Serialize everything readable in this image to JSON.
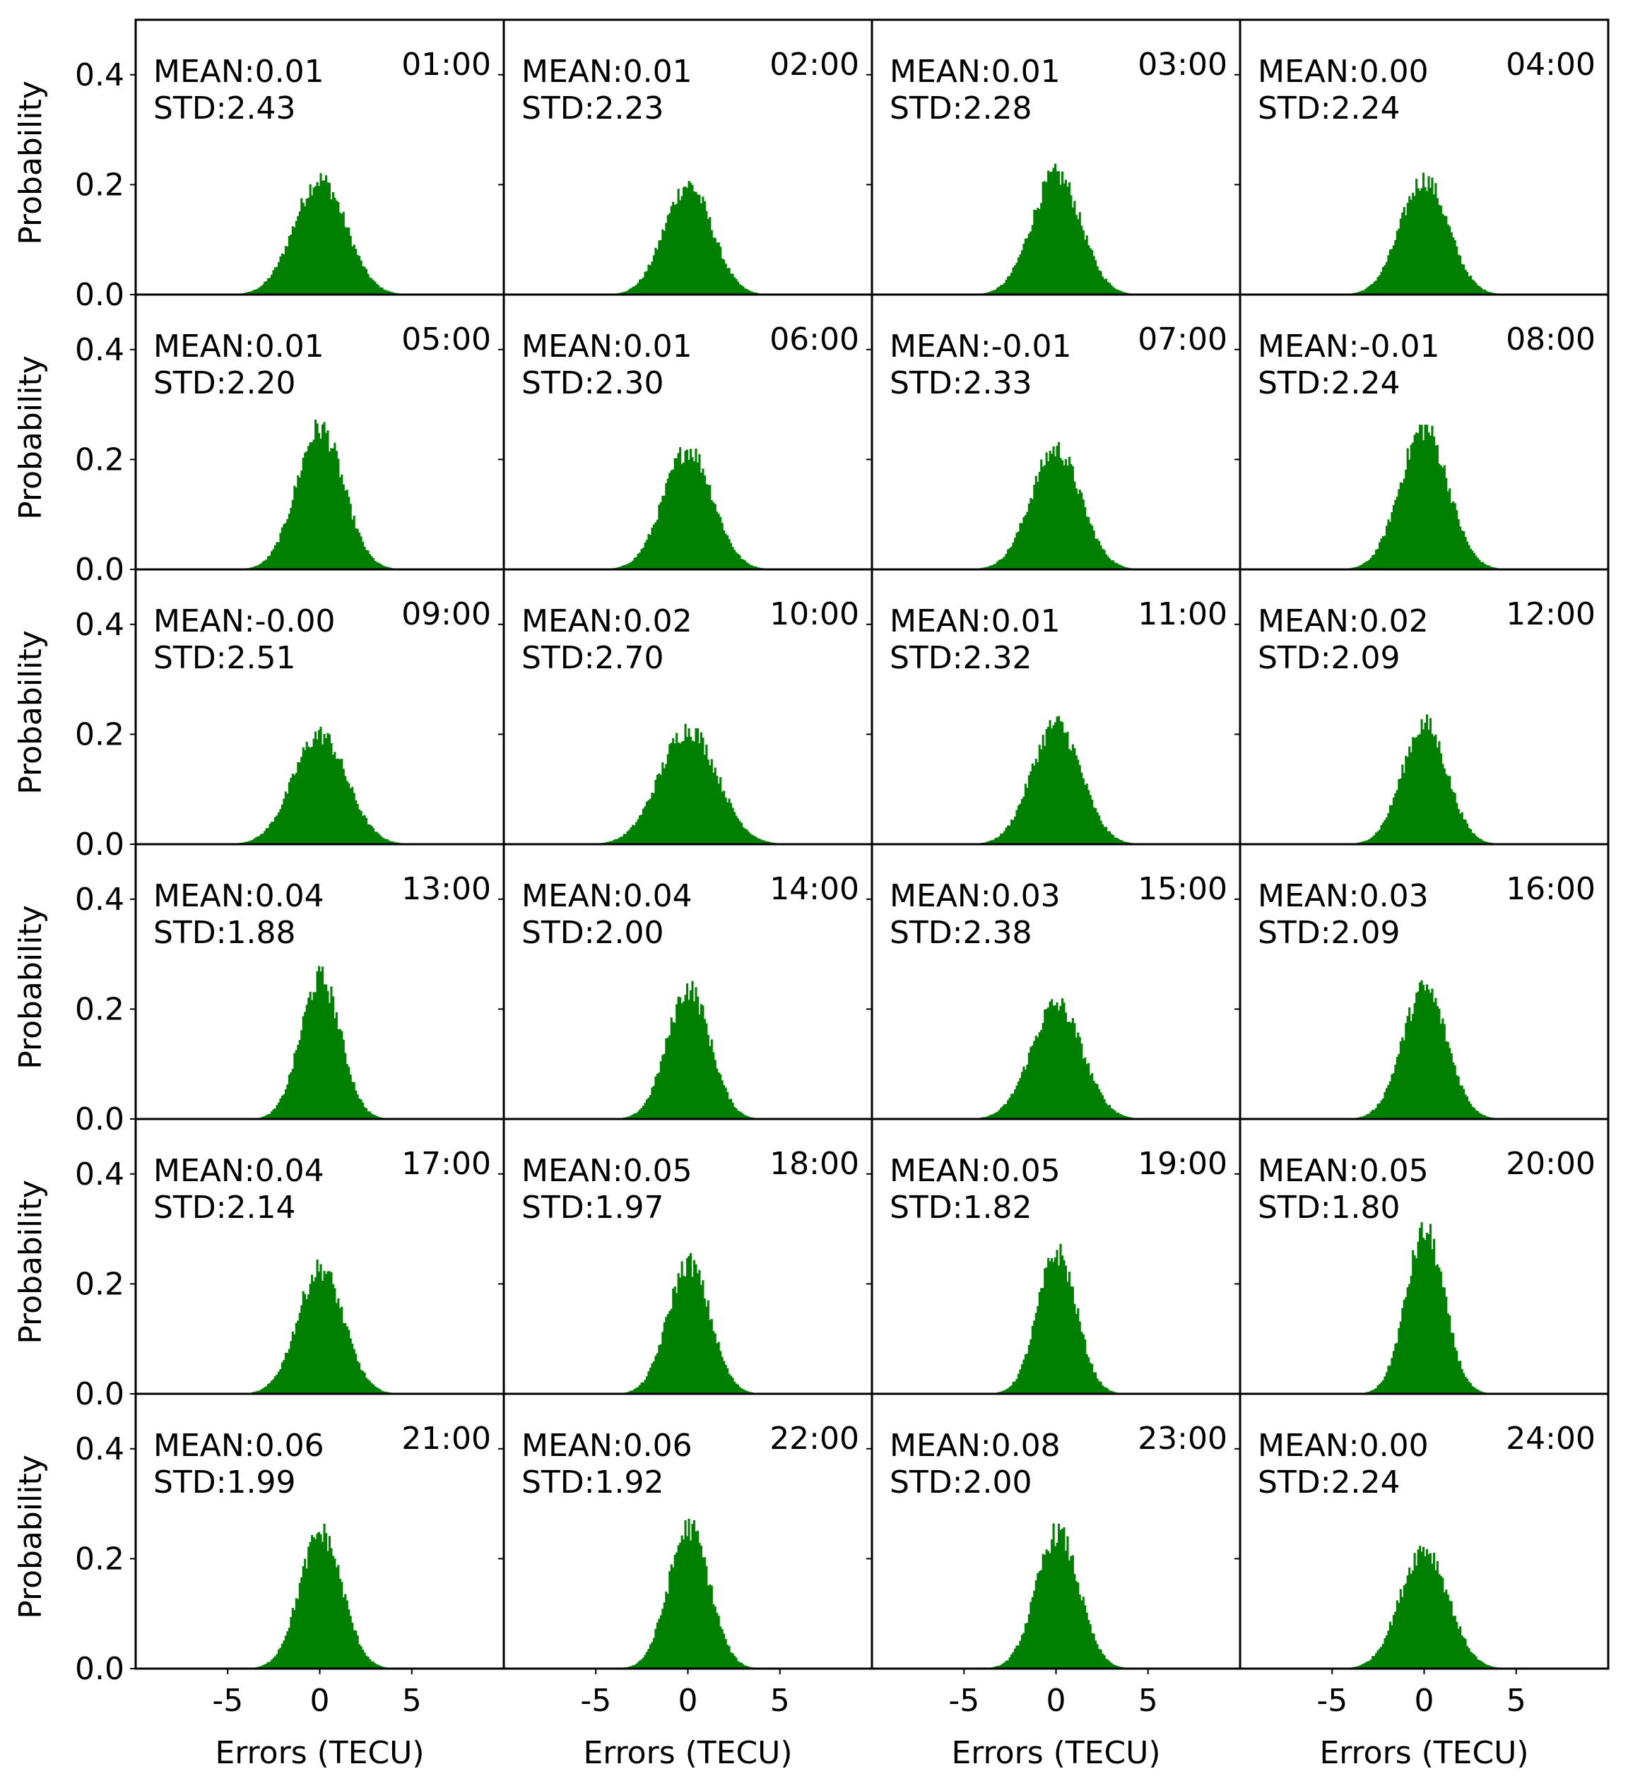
{
  "figure": {
    "ylabel": "Probability",
    "xlabel": "Errors (TECU)",
    "x_ticks": [
      "-5",
      "0",
      "5"
    ],
    "y_ticks": [
      "0.0",
      "0.2",
      "0.4"
    ],
    "bar_color": "#008000"
  },
  "chart_data": [
    {
      "type": "bar",
      "hour": "01:00",
      "mean": "MEAN:0.01",
      "std": "STD:2.43",
      "mean_value": 0.01,
      "std_value": 2.43,
      "peak": 0.22,
      "xlim": [
        -10,
        10
      ],
      "ylim": [
        0,
        0.5
      ]
    },
    {
      "type": "bar",
      "hour": "02:00",
      "mean": "MEAN:0.01",
      "std": "STD:2.23",
      "mean_value": 0.01,
      "std_value": 2.23,
      "peak": 0.21,
      "xlim": [
        -10,
        10
      ],
      "ylim": [
        0,
        0.5
      ]
    },
    {
      "type": "bar",
      "hour": "03:00",
      "mean": "MEAN:0.01",
      "std": "STD:2.28",
      "mean_value": 0.01,
      "std_value": 2.28,
      "peak": 0.23,
      "xlim": [
        -10,
        10
      ],
      "ylim": [
        0,
        0.5
      ]
    },
    {
      "type": "bar",
      "hour": "04:00",
      "mean": "MEAN:0.00",
      "std": "STD:2.24",
      "mean_value": 0.0,
      "std_value": 2.24,
      "peak": 0.22,
      "xlim": [
        -10,
        10
      ],
      "ylim": [
        0,
        0.5
      ]
    },
    {
      "type": "bar",
      "hour": "05:00",
      "mean": "MEAN:0.01",
      "std": "STD:2.20",
      "mean_value": 0.01,
      "std_value": 2.2,
      "peak": 0.27,
      "xlim": [
        -10,
        10
      ],
      "ylim": [
        0,
        0.5
      ]
    },
    {
      "type": "bar",
      "hour": "06:00",
      "mean": "MEAN:0.01",
      "std": "STD:2.30",
      "mean_value": 0.01,
      "std_value": 2.3,
      "peak": 0.23,
      "xlim": [
        -10,
        10
      ],
      "ylim": [
        0,
        0.5
      ]
    },
    {
      "type": "bar",
      "hour": "07:00",
      "mean": "MEAN:-0.01",
      "std": "STD:2.33",
      "mean_value": -0.01,
      "std_value": 2.33,
      "peak": 0.23,
      "xlim": [
        -10,
        10
      ],
      "ylim": [
        0,
        0.5
      ]
    },
    {
      "type": "bar",
      "hour": "08:00",
      "mean": "MEAN:-0.01",
      "std": "STD:2.24",
      "mean_value": -0.01,
      "std_value": 2.24,
      "peak": 0.27,
      "xlim": [
        -10,
        10
      ],
      "ylim": [
        0,
        0.5
      ]
    },
    {
      "type": "bar",
      "hour": "09:00",
      "mean": "MEAN:-0.00",
      "std": "STD:2.51",
      "mean_value": 0.0,
      "std_value": 2.51,
      "peak": 0.21,
      "xlim": [
        -10,
        10
      ],
      "ylim": [
        0,
        0.5
      ]
    },
    {
      "type": "bar",
      "hour": "10:00",
      "mean": "MEAN:0.02",
      "std": "STD:2.70",
      "mean_value": 0.02,
      "std_value": 2.7,
      "peak": 0.22,
      "xlim": [
        -10,
        10
      ],
      "ylim": [
        0,
        0.5
      ]
    },
    {
      "type": "bar",
      "hour": "11:00",
      "mean": "MEAN:0.01",
      "std": "STD:2.32",
      "mean_value": 0.01,
      "std_value": 2.32,
      "peak": 0.23,
      "xlim": [
        -10,
        10
      ],
      "ylim": [
        0,
        0.5
      ]
    },
    {
      "type": "bar",
      "hour": "12:00",
      "mean": "MEAN:0.02",
      "std": "STD:2.09",
      "mean_value": 0.02,
      "std_value": 2.09,
      "peak": 0.23,
      "xlim": [
        -10,
        10
      ],
      "ylim": [
        0,
        0.5
      ]
    },
    {
      "type": "bar",
      "hour": "13:00",
      "mean": "MEAN:0.04",
      "std": "STD:1.88",
      "mean_value": 0.04,
      "std_value": 1.88,
      "peak": 0.27,
      "xlim": [
        -10,
        10
      ],
      "ylim": [
        0,
        0.5
      ]
    },
    {
      "type": "bar",
      "hour": "14:00",
      "mean": "MEAN:0.04",
      "std": "STD:2.00",
      "mean_value": 0.04,
      "std_value": 2.0,
      "peak": 0.25,
      "xlim": [
        -10,
        10
      ],
      "ylim": [
        0,
        0.5
      ]
    },
    {
      "type": "bar",
      "hour": "15:00",
      "mean": "MEAN:0.03",
      "std": "STD:2.38",
      "mean_value": 0.03,
      "std_value": 2.38,
      "peak": 0.22,
      "xlim": [
        -10,
        10
      ],
      "ylim": [
        0,
        0.5
      ]
    },
    {
      "type": "bar",
      "hour": "16:00",
      "mean": "MEAN:0.03",
      "std": "STD:2.09",
      "mean_value": 0.03,
      "std_value": 2.09,
      "peak": 0.25,
      "xlim": [
        -10,
        10
      ],
      "ylim": [
        0,
        0.5
      ]
    },
    {
      "type": "bar",
      "hour": "17:00",
      "mean": "MEAN:0.04",
      "std": "STD:2.14",
      "mean_value": 0.04,
      "std_value": 2.14,
      "peak": 0.24,
      "xlim": [
        -10,
        10
      ],
      "ylim": [
        0,
        0.5
      ]
    },
    {
      "type": "bar",
      "hour": "18:00",
      "mean": "MEAN:0.05",
      "std": "STD:1.97",
      "mean_value": 0.05,
      "std_value": 1.97,
      "peak": 0.25,
      "xlim": [
        -10,
        10
      ],
      "ylim": [
        0,
        0.5
      ]
    },
    {
      "type": "bar",
      "hour": "19:00",
      "mean": "MEAN:0.05",
      "std": "STD:1.82",
      "mean_value": 0.05,
      "std_value": 1.82,
      "peak": 0.27,
      "xlim": [
        -10,
        10
      ],
      "ylim": [
        0,
        0.5
      ]
    },
    {
      "type": "bar",
      "hour": "20:00",
      "mean": "MEAN:0.05",
      "std": "STD:1.80",
      "mean_value": 0.05,
      "std_value": 1.8,
      "peak": 0.31,
      "xlim": [
        -10,
        10
      ],
      "ylim": [
        0,
        0.5
      ]
    },
    {
      "type": "bar",
      "hour": "21:00",
      "mean": "MEAN:0.06",
      "std": "STD:1.99",
      "mean_value": 0.06,
      "std_value": 1.99,
      "peak": 0.26,
      "xlim": [
        -10,
        10
      ],
      "ylim": [
        0,
        0.5
      ]
    },
    {
      "type": "bar",
      "hour": "22:00",
      "mean": "MEAN:0.06",
      "std": "STD:1.92",
      "mean_value": 0.06,
      "std_value": 1.92,
      "peak": 0.27,
      "xlim": [
        -10,
        10
      ],
      "ylim": [
        0,
        0.5
      ]
    },
    {
      "type": "bar",
      "hour": "23:00",
      "mean": "MEAN:0.08",
      "std": "STD:2.00",
      "mean_value": 0.08,
      "std_value": 2.0,
      "peak": 0.26,
      "xlim": [
        -10,
        10
      ],
      "ylim": [
        0,
        0.5
      ]
    },
    {
      "type": "bar",
      "hour": "24:00",
      "mean": "MEAN:0.00",
      "std": "STD:2.24",
      "mean_value": 0.0,
      "std_value": 2.24,
      "peak": 0.23,
      "xlim": [
        -10,
        10
      ],
      "ylim": [
        0,
        0.5
      ]
    }
  ]
}
